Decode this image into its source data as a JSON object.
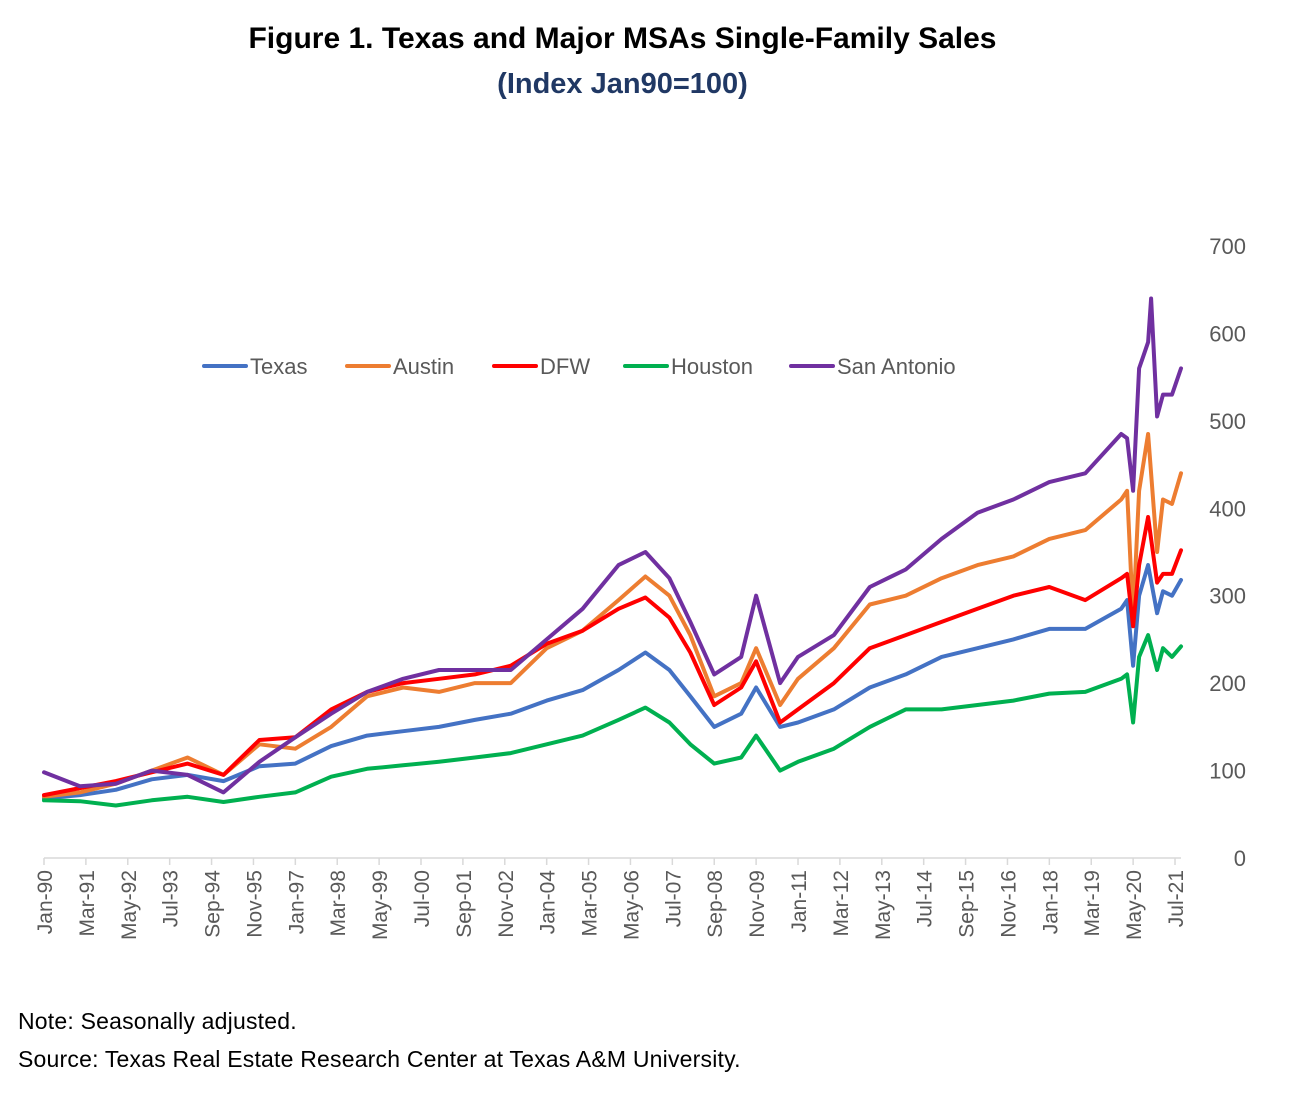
{
  "chart_data": {
    "type": "line",
    "title": "Figure 1. Texas and Major MSAs Single-Family Sales",
    "subtitle": "(Index Jan90=100)",
    "y_axis_position": "right",
    "ylim": [
      0,
      700
    ],
    "y_ticks": [
      0,
      100,
      200,
      300,
      400,
      500,
      600,
      700
    ],
    "x_tick_labels": [
      "Jan-90",
      "Mar-91",
      "May-92",
      "Jul-93",
      "Sep-94",
      "Nov-95",
      "Jan-97",
      "Mar-98",
      "May-99",
      "Jul-00",
      "Sep-01",
      "Nov-02",
      "Jan-04",
      "Mar-05",
      "May-06",
      "Jul-07",
      "Sep-08",
      "Nov-09",
      "Jan-11",
      "Mar-12",
      "May-13",
      "Jul-14",
      "Sep-15",
      "Nov-16",
      "Jan-18",
      "Mar-19",
      "May-20",
      "Jul-21"
    ],
    "x_start": "Jan-90",
    "x_end": "Sep-21",
    "grid": false,
    "legend_placement": "top-center",
    "series": [
      {
        "name": "Texas",
        "color": "#4472C4",
        "points": [
          [
            "Jan-90",
            68
          ],
          [
            "Jan-91",
            72
          ],
          [
            "Jan-92",
            78
          ],
          [
            "Jan-93",
            90
          ],
          [
            "Jan-94",
            95
          ],
          [
            "Jan-95",
            88
          ],
          [
            "Jan-96",
            105
          ],
          [
            "Jan-97",
            108
          ],
          [
            "Jan-98",
            128
          ],
          [
            "Jan-99",
            140
          ],
          [
            "Jan-00",
            145
          ],
          [
            "Jan-01",
            150
          ],
          [
            "Jan-02",
            158
          ],
          [
            "Jan-03",
            165
          ],
          [
            "Jan-04",
            180
          ],
          [
            "Jan-05",
            192
          ],
          [
            "Jan-06",
            215
          ],
          [
            "Oct-06",
            235
          ],
          [
            "Jun-07",
            215
          ],
          [
            "Jan-08",
            185
          ],
          [
            "Sep-08",
            150
          ],
          [
            "Jun-09",
            165
          ],
          [
            "Nov-09",
            195
          ],
          [
            "Jul-10",
            150
          ],
          [
            "Jan-11",
            155
          ],
          [
            "Jan-12",
            170
          ],
          [
            "Jan-13",
            195
          ],
          [
            "Jan-14",
            210
          ],
          [
            "Jan-15",
            230
          ],
          [
            "Jan-16",
            240
          ],
          [
            "Jan-17",
            250
          ],
          [
            "Jan-18",
            262
          ],
          [
            "Jan-19",
            262
          ],
          [
            "Jan-20",
            285
          ],
          [
            "Mar-20",
            295
          ],
          [
            "May-20",
            220
          ],
          [
            "Jul-20",
            300
          ],
          [
            "Oct-20",
            335
          ],
          [
            "Jan-21",
            280
          ],
          [
            "Mar-21",
            305
          ],
          [
            "Jun-21",
            300
          ],
          [
            "Sep-21",
            318
          ]
        ]
      },
      {
        "name": "Austin",
        "color": "#ED7D31",
        "points": [
          [
            "Jan-90",
            70
          ],
          [
            "Jan-91",
            75
          ],
          [
            "Jan-92",
            85
          ],
          [
            "Jan-93",
            100
          ],
          [
            "Jan-94",
            115
          ],
          [
            "Jan-95",
            95
          ],
          [
            "Jan-96",
            130
          ],
          [
            "Jan-97",
            125
          ],
          [
            "Jan-98",
            150
          ],
          [
            "Jan-99",
            185
          ],
          [
            "Jan-00",
            195
          ],
          [
            "Jan-01",
            190
          ],
          [
            "Jan-02",
            200
          ],
          [
            "Jan-03",
            200
          ],
          [
            "Jan-04",
            240
          ],
          [
            "Jan-05",
            260
          ],
          [
            "Jan-06",
            295
          ],
          [
            "Oct-06",
            322
          ],
          [
            "Jun-07",
            300
          ],
          [
            "Jan-08",
            255
          ],
          [
            "Sep-08",
            185
          ],
          [
            "Jun-09",
            200
          ],
          [
            "Nov-09",
            240
          ],
          [
            "Jul-10",
            175
          ],
          [
            "Jan-11",
            205
          ],
          [
            "Jan-12",
            240
          ],
          [
            "Jan-13",
            290
          ],
          [
            "Jan-14",
            300
          ],
          [
            "Jan-15",
            320
          ],
          [
            "Jan-16",
            335
          ],
          [
            "Jan-17",
            345
          ],
          [
            "Jan-18",
            365
          ],
          [
            "Jan-19",
            375
          ],
          [
            "Jan-20",
            410
          ],
          [
            "Mar-20",
            420
          ],
          [
            "May-20",
            275
          ],
          [
            "Jul-20",
            420
          ],
          [
            "Oct-20",
            485
          ],
          [
            "Jan-21",
            350
          ],
          [
            "Mar-21",
            410
          ],
          [
            "Jun-21",
            405
          ],
          [
            "Sep-21",
            440
          ]
        ]
      },
      {
        "name": "DFW",
        "color": "#FF0000",
        "points": [
          [
            "Jan-90",
            72
          ],
          [
            "Jan-91",
            80
          ],
          [
            "Jan-92",
            88
          ],
          [
            "Jan-93",
            98
          ],
          [
            "Jan-94",
            108
          ],
          [
            "Jan-95",
            95
          ],
          [
            "Jan-96",
            135
          ],
          [
            "Jan-97",
            138
          ],
          [
            "Jan-98",
            170
          ],
          [
            "Jan-99",
            190
          ],
          [
            "Jan-00",
            200
          ],
          [
            "Jan-01",
            205
          ],
          [
            "Jan-02",
            210
          ],
          [
            "Jan-03",
            220
          ],
          [
            "Jan-04",
            245
          ],
          [
            "Jan-05",
            260
          ],
          [
            "Jan-06",
            285
          ],
          [
            "Oct-06",
            298
          ],
          [
            "Jun-07",
            275
          ],
          [
            "Jan-08",
            235
          ],
          [
            "Sep-08",
            175
          ],
          [
            "Jun-09",
            195
          ],
          [
            "Nov-09",
            225
          ],
          [
            "Jul-10",
            155
          ],
          [
            "Jan-11",
            170
          ],
          [
            "Jan-12",
            200
          ],
          [
            "Jan-13",
            240
          ],
          [
            "Jan-14",
            255
          ],
          [
            "Jan-15",
            270
          ],
          [
            "Jan-16",
            285
          ],
          [
            "Jan-17",
            300
          ],
          [
            "Jan-18",
            310
          ],
          [
            "Jan-19",
            295
          ],
          [
            "Jan-20",
            320
          ],
          [
            "Mar-20",
            325
          ],
          [
            "May-20",
            265
          ],
          [
            "Jul-20",
            335
          ],
          [
            "Oct-20",
            390
          ],
          [
            "Jan-21",
            315
          ],
          [
            "Mar-21",
            325
          ],
          [
            "Jun-21",
            325
          ],
          [
            "Sep-21",
            352
          ]
        ]
      },
      {
        "name": "Houston",
        "color": "#00B050",
        "points": [
          [
            "Jan-90",
            66
          ],
          [
            "Jan-91",
            65
          ],
          [
            "Jan-92",
            60
          ],
          [
            "Jan-93",
            66
          ],
          [
            "Jan-94",
            70
          ],
          [
            "Jan-95",
            64
          ],
          [
            "Jan-96",
            70
          ],
          [
            "Jan-97",
            75
          ],
          [
            "Jan-98",
            93
          ],
          [
            "Jan-99",
            102
          ],
          [
            "Jan-00",
            106
          ],
          [
            "Jan-01",
            110
          ],
          [
            "Jan-02",
            115
          ],
          [
            "Jan-03",
            120
          ],
          [
            "Jan-04",
            130
          ],
          [
            "Jan-05",
            140
          ],
          [
            "Jan-06",
            158
          ],
          [
            "Oct-06",
            172
          ],
          [
            "Jun-07",
            155
          ],
          [
            "Jan-08",
            130
          ],
          [
            "Sep-08",
            108
          ],
          [
            "Jun-09",
            115
          ],
          [
            "Nov-09",
            140
          ],
          [
            "Jul-10",
            100
          ],
          [
            "Jan-11",
            110
          ],
          [
            "Jan-12",
            125
          ],
          [
            "Jan-13",
            150
          ],
          [
            "Jan-14",
            170
          ],
          [
            "Jan-15",
            170
          ],
          [
            "Jan-16",
            175
          ],
          [
            "Jan-17",
            180
          ],
          [
            "Jan-18",
            188
          ],
          [
            "Jan-19",
            190
          ],
          [
            "Jan-20",
            205
          ],
          [
            "Mar-20",
            210
          ],
          [
            "May-20",
            155
          ],
          [
            "Jul-20",
            230
          ],
          [
            "Oct-20",
            255
          ],
          [
            "Jan-21",
            215
          ],
          [
            "Mar-21",
            240
          ],
          [
            "Jun-21",
            230
          ],
          [
            "Sep-21",
            242
          ]
        ]
      },
      {
        "name": "San Antonio",
        "color": "#7030A0",
        "points": [
          [
            "Jan-90",
            98
          ],
          [
            "Jan-91",
            82
          ],
          [
            "Jan-92",
            85
          ],
          [
            "Jan-93",
            100
          ],
          [
            "Jan-94",
            95
          ],
          [
            "Jan-95",
            75
          ],
          [
            "Jan-96",
            110
          ],
          [
            "Jan-97",
            138
          ],
          [
            "Jan-98",
            165
          ],
          [
            "Jan-99",
            190
          ],
          [
            "Jan-00",
            205
          ],
          [
            "Jan-01",
            215
          ],
          [
            "Jan-02",
            215
          ],
          [
            "Jan-03",
            215
          ],
          [
            "Jan-04",
            250
          ],
          [
            "Jan-05",
            285
          ],
          [
            "Jan-06",
            335
          ],
          [
            "Oct-06",
            350
          ],
          [
            "Jun-07",
            320
          ],
          [
            "Jan-08",
            270
          ],
          [
            "Sep-08",
            210
          ],
          [
            "Jun-09",
            230
          ],
          [
            "Nov-09",
            300
          ],
          [
            "Jul-10",
            200
          ],
          [
            "Jan-11",
            230
          ],
          [
            "Jan-12",
            255
          ],
          [
            "Jan-13",
            310
          ],
          [
            "Jan-14",
            330
          ],
          [
            "Jan-15",
            365
          ],
          [
            "Jan-16",
            395
          ],
          [
            "Jan-17",
            410
          ],
          [
            "Jan-18",
            430
          ],
          [
            "Jan-19",
            440
          ],
          [
            "Jan-20",
            485
          ],
          [
            "Mar-20",
            480
          ],
          [
            "May-20",
            420
          ],
          [
            "Jul-20",
            560
          ],
          [
            "Oct-20",
            590
          ],
          [
            "Nov-20",
            640
          ],
          [
            "Jan-21",
            505
          ],
          [
            "Mar-21",
            530
          ],
          [
            "Jun-21",
            530
          ],
          [
            "Sep-21",
            560
          ]
        ]
      }
    ]
  },
  "notes": {
    "note": "Note: Seasonally adjusted.",
    "source": "Source: Texas Real Estate Research Center at Texas A&M University."
  }
}
